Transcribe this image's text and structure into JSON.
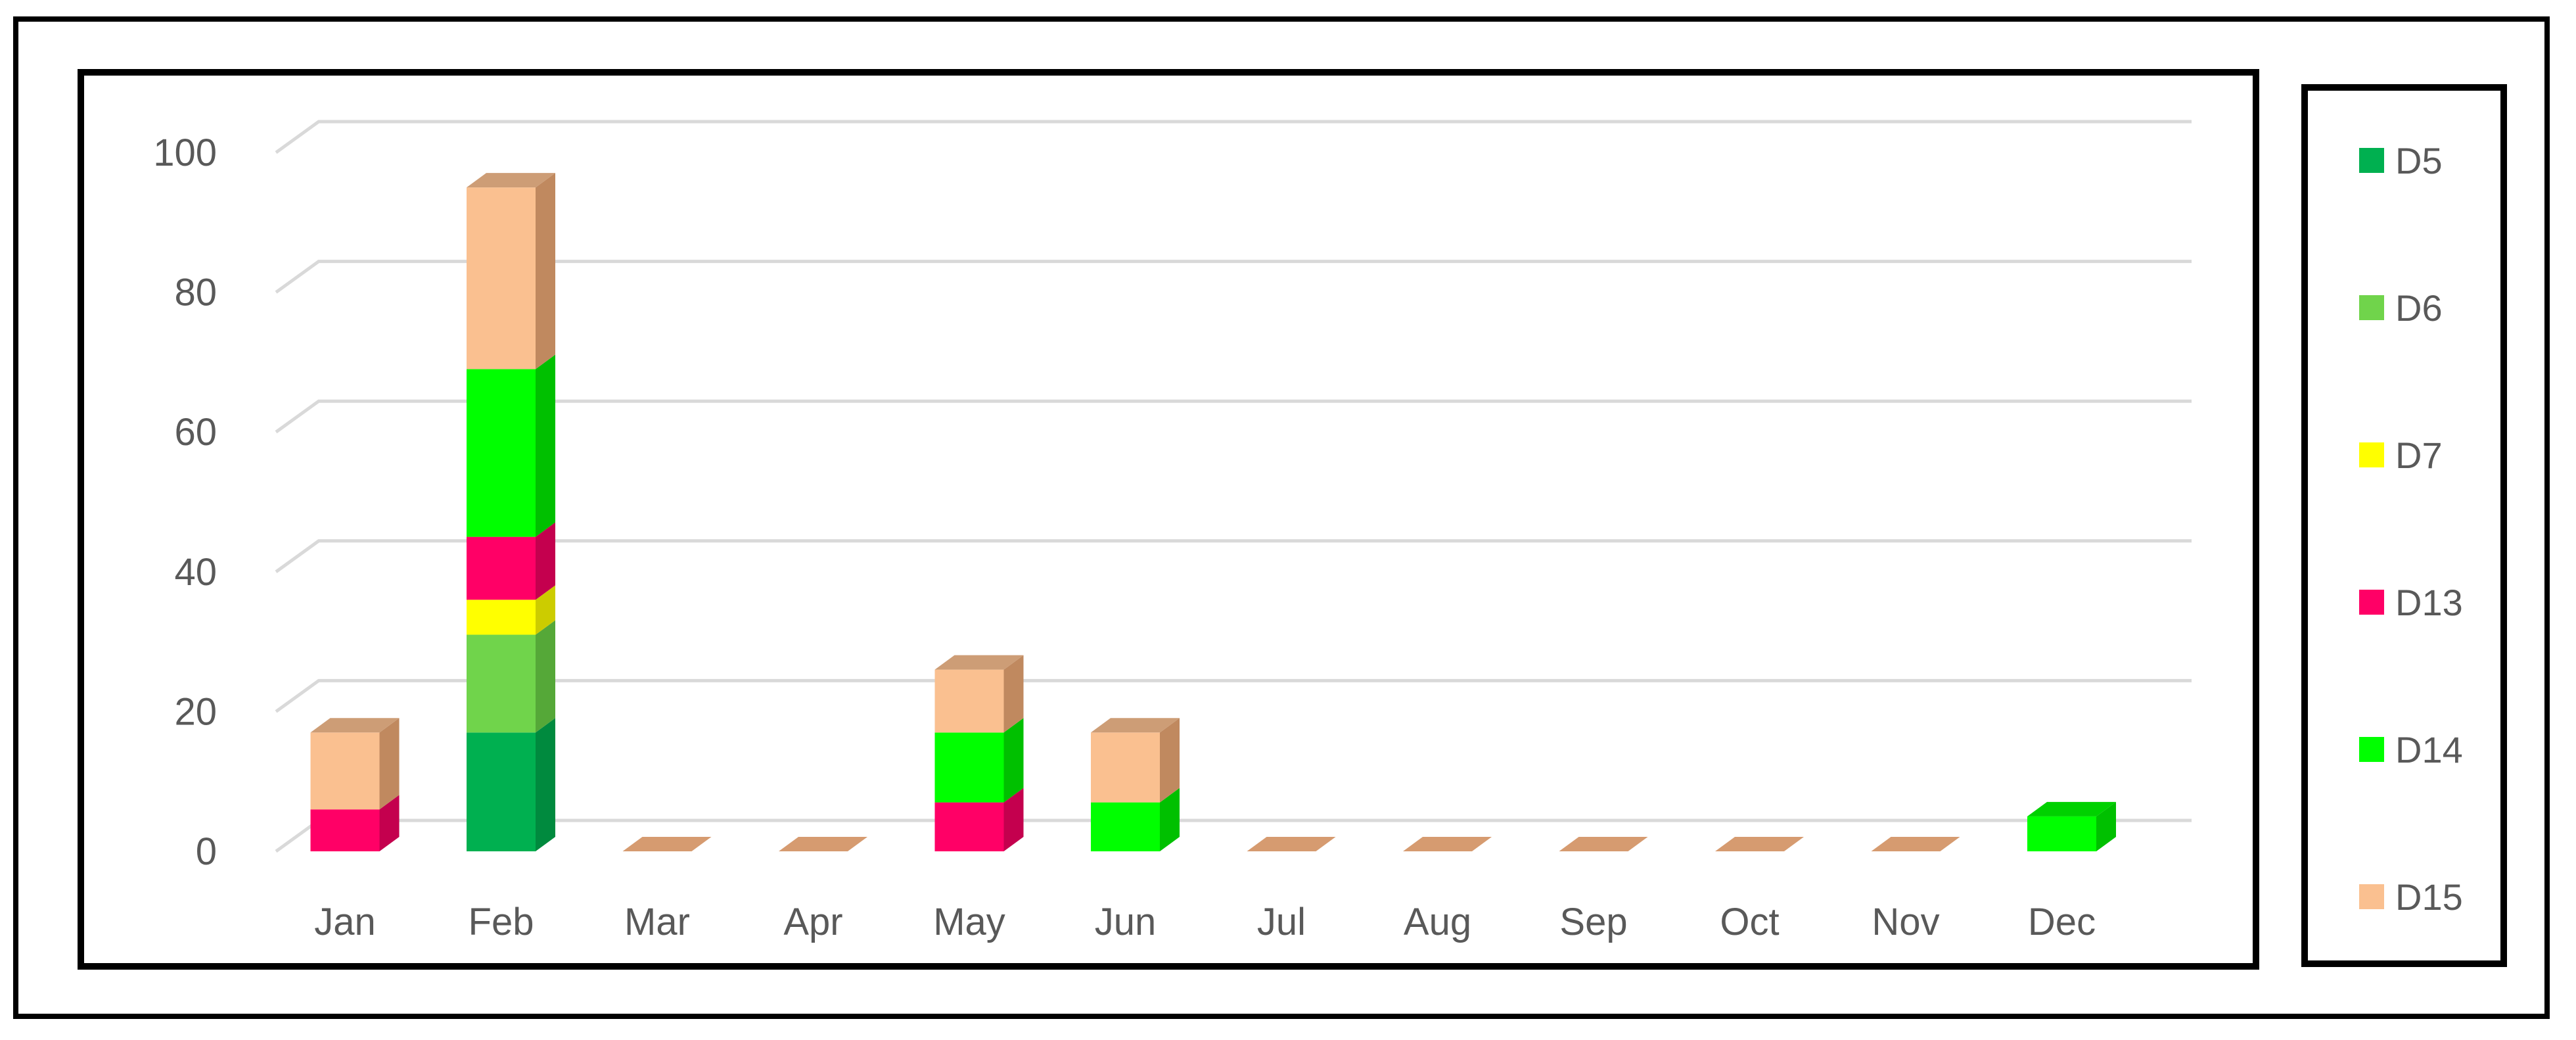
{
  "chart_data": {
    "type": "bar",
    "stacked": true,
    "three_d": true,
    "title": "",
    "xlabel": "",
    "ylabel": "",
    "ylim": [
      0,
      100
    ],
    "yticks": [
      "0",
      "20",
      "40",
      "60",
      "80",
      "100"
    ],
    "categories": [
      "Jan",
      "Feb",
      "Mar",
      "Apr",
      "May",
      "Jun",
      "Jul",
      "Aug",
      "Sep",
      "Oct",
      "Nov",
      "Dec"
    ],
    "grid": true,
    "legend_position": "right",
    "series": [
      {
        "name": "D5",
        "color": "#00b050",
        "side_color": "#008a3e",
        "values": [
          0,
          17,
          0,
          0,
          0,
          0,
          0,
          0,
          0,
          0,
          0,
          0
        ]
      },
      {
        "name": "D6",
        "color": "#70d44b",
        "side_color": "#55a838",
        "values": [
          0,
          14,
          0,
          0,
          0,
          0,
          0,
          0,
          0,
          0,
          0,
          0
        ]
      },
      {
        "name": "D7",
        "color": "#ffff00",
        "side_color": "#cccc00",
        "values": [
          0,
          5,
          0,
          0,
          0,
          0,
          0,
          0,
          0,
          0,
          0,
          0
        ]
      },
      {
        "name": "D13",
        "color": "#ff0066",
        "side_color": "#c4004e",
        "values": [
          6,
          9,
          0,
          0,
          7,
          0,
          0,
          0,
          0,
          0,
          0,
          0
        ]
      },
      {
        "name": "D14",
        "color": "#00ff00",
        "side_color": "#00c000",
        "values": [
          0,
          24,
          0,
          0,
          10,
          7,
          0,
          0,
          0,
          0,
          0,
          5
        ]
      },
      {
        "name": "D15",
        "color": "#fac090",
        "side_color": "#c0895f",
        "values": [
          11,
          26,
          0,
          0,
          9,
          10,
          0,
          0,
          0,
          0,
          0,
          0
        ]
      }
    ]
  }
}
